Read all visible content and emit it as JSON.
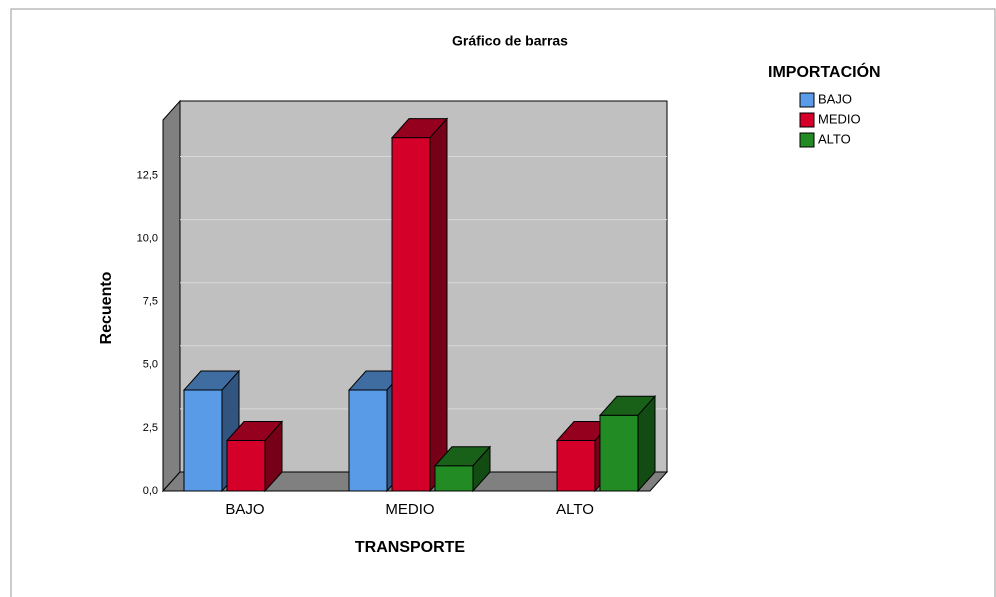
{
  "chart_data": {
    "type": "bar3d",
    "title": "Gráfico de barras",
    "x_label": "TRANSPORTE",
    "y_label": "Recuento",
    "legend_title": "IMPORTACIÓN",
    "legend": "top-right",
    "categories": [
      "BAJO",
      "MEDIO",
      "ALTO"
    ],
    "series": [
      {
        "name": "BAJO",
        "color": "#5a9be8",
        "values": [
          4,
          4,
          0
        ]
      },
      {
        "name": "MEDIO",
        "color": "#d4002a",
        "values": [
          2,
          14,
          2
        ]
      },
      {
        "name": "ALTO",
        "color": "#238b23",
        "values": [
          0,
          1,
          3
        ]
      }
    ],
    "ylim": [
      0,
      14.7
    ],
    "yticks": [
      {
        "value": 0,
        "label": "0,0"
      },
      {
        "value": 2.5,
        "label": "2,5"
      },
      {
        "value": 5,
        "label": "5,0"
      },
      {
        "value": 7.5,
        "label": "7,5"
      },
      {
        "value": 10,
        "label": "10,0"
      },
      {
        "value": 12.5,
        "label": "12,5"
      }
    ],
    "grid": true
  }
}
